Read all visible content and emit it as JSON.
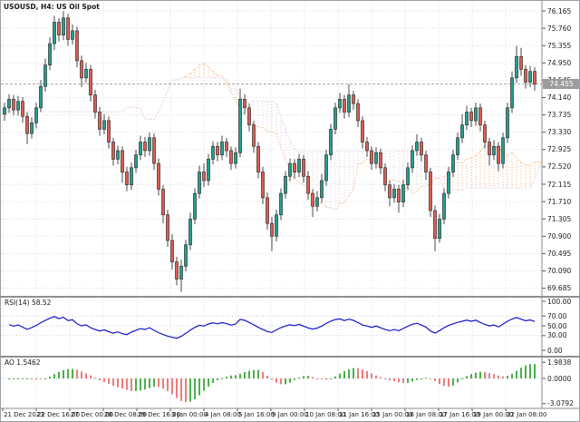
{
  "title": "USOUSD, H4: US Oil Spot",
  "colors": {
    "bull": "#23a08d",
    "bear": "#e15b54",
    "candle_border": "#2e2e2e",
    "wick": "#4a4a4a",
    "grid": "#d9d9d9",
    "level": "#c6c6c6",
    "cloud_up": "#f4a460",
    "cloud_down": "#d8bfd8",
    "rsi_line": "#1414cc",
    "ao_up": "#4cae4c",
    "ao_down": "#ee7a7a",
    "divider": "#8f8f8f",
    "axis_line": "#8a8a8a",
    "tick_mark": "#555555",
    "bid_line": "#a8a8a8",
    "price_tag_bg": "#9c9c9c",
    "price_tag_text": "#ffffff"
  },
  "price_axis": {
    "ticks": [
      "76.165",
      "75.760",
      "75.355",
      "74.950",
      "74.545",
      "74.140",
      "73.735",
      "73.330",
      "72.925",
      "72.520",
      "72.115",
      "71.710",
      "71.305",
      "70.900",
      "70.495",
      "70.090",
      "69.685"
    ],
    "current": "74.455"
  },
  "rsi_panel": {
    "label": "RSI(14) 58.52",
    "ticks": [
      "100.00",
      "70.00",
      "50.00",
      "30.00",
      "0.00"
    ],
    "tick_values": [
      100,
      70,
      50,
      30,
      0
    ],
    "levels": [
      70,
      50,
      30
    ]
  },
  "ao_panel": {
    "label": "AO 1.5462",
    "ticks": [
      "1.9838",
      "0.0000",
      "-3.0792"
    ],
    "tick_values": [
      1.9838,
      0,
      -3.0792
    ]
  },
  "time_axis": {
    "labels": [
      "21 Dec 2023",
      "22 Dec 16:00",
      "27 Dec 00:00",
      "28 Dec 08:00",
      "29 Dec 16:00",
      "3 Jan 00:00",
      "4 Jan 08:00",
      "5 Jan 16:00",
      "9 Jan 00:00",
      "10 Jan 08:00",
      "11 Jan 16:00",
      "15 Jan 00:00",
      "16 Jan 08:00",
      "17 Jan 16:00",
      "19 Jan 00:00",
      "22 Jan 08:00"
    ]
  },
  "chart_data": {
    "type": "candlestick",
    "symbol": "USOUSD",
    "timeframe": "H4",
    "description": "US Oil Spot",
    "price_range": [
      69.685,
      76.165
    ],
    "current_price": 74.455,
    "indicators": {
      "ichimoku_cloud": {
        "tenkan": 9,
        "kijun": 26,
        "senkou_b": 52,
        "shift": 26,
        "up_color": "#f4a460",
        "down_color": "#d8bfd8"
      },
      "rsi": {
        "period": 14,
        "last_value": 58.52,
        "levels": [
          30,
          50,
          70
        ]
      },
      "awesome_oscillator": {
        "last_value": 1.5462,
        "scale_max": 1.9838,
        "scale_min": -3.0792
      }
    },
    "ohlc": [
      [
        73.75,
        74.02,
        73.6,
        73.9
      ],
      [
        73.9,
        74.22,
        73.78,
        74.1
      ],
      [
        74.1,
        74.2,
        73.72,
        73.85
      ],
      [
        73.85,
        74.18,
        73.72,
        74.05
      ],
      [
        74.05,
        74.15,
        73.55,
        73.7
      ],
      [
        73.7,
        73.8,
        73.05,
        73.3
      ],
      [
        73.3,
        73.68,
        73.18,
        73.55
      ],
      [
        73.55,
        74.02,
        73.42,
        73.9
      ],
      [
        73.9,
        74.55,
        73.8,
        74.4
      ],
      [
        74.4,
        75.05,
        74.28,
        74.9
      ],
      [
        74.9,
        75.55,
        74.78,
        75.4
      ],
      [
        75.4,
        76.05,
        75.25,
        75.9
      ],
      [
        75.9,
        76.0,
        75.45,
        75.6
      ],
      [
        75.6,
        76.16,
        75.48,
        76.0
      ],
      [
        76.0,
        76.1,
        75.35,
        75.5
      ],
      [
        75.5,
        75.85,
        75.38,
        75.7
      ],
      [
        75.7,
        75.8,
        74.85,
        75.0
      ],
      [
        75.0,
        75.12,
        74.38,
        74.6
      ],
      [
        74.6,
        74.95,
        74.48,
        74.8
      ],
      [
        74.8,
        74.9,
        74.05,
        74.2
      ],
      [
        74.2,
        74.32,
        73.65,
        73.8
      ],
      [
        73.8,
        73.92,
        73.25,
        73.4
      ],
      [
        73.4,
        73.75,
        73.28,
        73.6
      ],
      [
        73.6,
        73.7,
        72.95,
        73.1
      ],
      [
        73.1,
        73.2,
        72.55,
        72.7
      ],
      [
        72.7,
        73.02,
        72.58,
        72.9
      ],
      [
        72.9,
        73.0,
        72.15,
        72.4
      ],
      [
        72.4,
        72.52,
        71.95,
        72.1
      ],
      [
        72.1,
        72.62,
        71.98,
        72.5
      ],
      [
        72.5,
        72.92,
        72.38,
        72.8
      ],
      [
        72.8,
        73.25,
        72.68,
        73.1
      ],
      [
        73.1,
        73.22,
        72.75,
        72.9
      ],
      [
        72.9,
        73.32,
        72.78,
        73.2
      ],
      [
        73.2,
        73.3,
        72.45,
        72.6
      ],
      [
        72.6,
        72.72,
        71.85,
        72.0
      ],
      [
        72.0,
        72.1,
        71.2,
        71.4
      ],
      [
        71.4,
        71.52,
        70.65,
        70.8
      ],
      [
        70.8,
        70.95,
        70.12,
        70.3
      ],
      [
        70.3,
        70.42,
        69.75,
        69.9
      ],
      [
        69.9,
        70.35,
        69.6,
        70.2
      ],
      [
        70.2,
        70.82,
        70.08,
        70.7
      ],
      [
        70.7,
        71.45,
        70.58,
        71.3
      ],
      [
        71.3,
        72.02,
        71.18,
        71.9
      ],
      [
        71.9,
        72.55,
        71.78,
        72.4
      ],
      [
        72.4,
        72.6,
        72.05,
        72.2
      ],
      [
        72.2,
        72.82,
        72.08,
        72.7
      ],
      [
        72.7,
        73.12,
        72.58,
        73.0
      ],
      [
        73.0,
        73.1,
        72.65,
        72.8
      ],
      [
        72.8,
        73.25,
        72.68,
        73.1
      ],
      [
        73.1,
        73.2,
        72.75,
        72.9
      ],
      [
        72.9,
        73.0,
        72.45,
        72.6
      ],
      [
        72.6,
        72.98,
        72.48,
        72.85
      ],
      [
        72.85,
        74.35,
        72.75,
        74.1
      ],
      [
        74.1,
        74.22,
        73.75,
        73.9
      ],
      [
        73.9,
        74.0,
        73.35,
        73.5
      ],
      [
        73.5,
        73.6,
        72.85,
        73.0
      ],
      [
        73.0,
        73.1,
        72.25,
        72.4
      ],
      [
        72.4,
        72.52,
        71.65,
        71.8
      ],
      [
        71.8,
        71.92,
        71.05,
        71.2
      ],
      [
        71.2,
        71.35,
        70.55,
        70.9
      ],
      [
        70.9,
        71.52,
        70.78,
        71.4
      ],
      [
        71.4,
        72.02,
        71.28,
        71.9
      ],
      [
        71.9,
        72.42,
        71.78,
        72.3
      ],
      [
        72.3,
        72.72,
        72.18,
        72.6
      ],
      [
        72.6,
        72.7,
        72.25,
        72.4
      ],
      [
        72.4,
        72.82,
        72.28,
        72.7
      ],
      [
        72.7,
        72.8,
        72.15,
        72.3
      ],
      [
        72.3,
        72.42,
        71.75,
        71.9
      ],
      [
        71.9,
        72.0,
        71.35,
        71.6
      ],
      [
        71.6,
        71.95,
        71.48,
        71.8
      ],
      [
        71.8,
        72.35,
        71.68,
        72.2
      ],
      [
        72.2,
        72.92,
        72.08,
        72.8
      ],
      [
        72.8,
        73.52,
        72.68,
        73.4
      ],
      [
        73.4,
        74.02,
        73.28,
        73.9
      ],
      [
        73.9,
        74.25,
        73.78,
        74.1
      ],
      [
        74.1,
        74.2,
        73.65,
        73.8
      ],
      [
        73.8,
        74.45,
        73.68,
        74.2
      ],
      [
        74.2,
        74.3,
        73.85,
        74.0
      ],
      [
        74.0,
        74.1,
        73.45,
        73.6
      ],
      [
        73.6,
        73.7,
        72.95,
        73.1
      ],
      [
        73.1,
        73.22,
        72.75,
        72.9
      ],
      [
        72.9,
        73.0,
        72.45,
        72.6
      ],
      [
        72.6,
        72.98,
        72.48,
        72.85
      ],
      [
        72.85,
        72.95,
        72.35,
        72.5
      ],
      [
        72.5,
        72.6,
        71.95,
        72.1
      ],
      [
        72.1,
        72.2,
        71.6,
        71.8
      ],
      [
        71.8,
        72.12,
        71.68,
        72.0
      ],
      [
        72.0,
        72.1,
        71.45,
        71.7
      ],
      [
        71.7,
        72.22,
        71.58,
        72.1
      ],
      [
        72.1,
        72.62,
        71.98,
        72.5
      ],
      [
        72.5,
        73.02,
        72.38,
        72.9
      ],
      [
        72.9,
        73.28,
        72.78,
        73.1
      ],
      [
        73.1,
        73.2,
        72.65,
        72.8
      ],
      [
        72.8,
        72.9,
        72.22,
        72.4
      ],
      [
        72.4,
        72.5,
        71.35,
        71.5
      ],
      [
        71.5,
        71.62,
        70.55,
        70.85
      ],
      [
        70.85,
        71.42,
        70.75,
        71.3
      ],
      [
        71.3,
        72.02,
        71.18,
        71.9
      ],
      [
        71.9,
        72.52,
        71.78,
        72.4
      ],
      [
        72.4,
        72.92,
        72.28,
        72.8
      ],
      [
        72.8,
        73.32,
        72.68,
        73.2
      ],
      [
        73.2,
        73.75,
        73.08,
        73.5
      ],
      [
        73.5,
        73.95,
        73.38,
        73.8
      ],
      [
        73.8,
        73.9,
        73.45,
        73.6
      ],
      [
        73.6,
        74.02,
        73.48,
        73.9
      ],
      [
        73.9,
        74.0,
        73.35,
        73.5
      ],
      [
        73.5,
        73.6,
        72.95,
        73.1
      ],
      [
        73.1,
        73.2,
        72.55,
        72.8
      ],
      [
        72.8,
        73.15,
        72.68,
        73.0
      ],
      [
        73.0,
        73.1,
        72.42,
        72.6
      ],
      [
        72.6,
        73.32,
        72.48,
        73.2
      ],
      [
        73.2,
        74.02,
        73.08,
        73.9
      ],
      [
        73.9,
        74.75,
        73.78,
        74.6
      ],
      [
        74.6,
        75.35,
        74.48,
        75.1
      ],
      [
        75.1,
        75.3,
        74.65,
        74.8
      ],
      [
        74.8,
        74.9,
        74.35,
        74.5
      ],
      [
        74.5,
        74.88,
        74.38,
        74.75
      ],
      [
        74.75,
        74.85,
        74.3,
        74.455
      ]
    ]
  }
}
